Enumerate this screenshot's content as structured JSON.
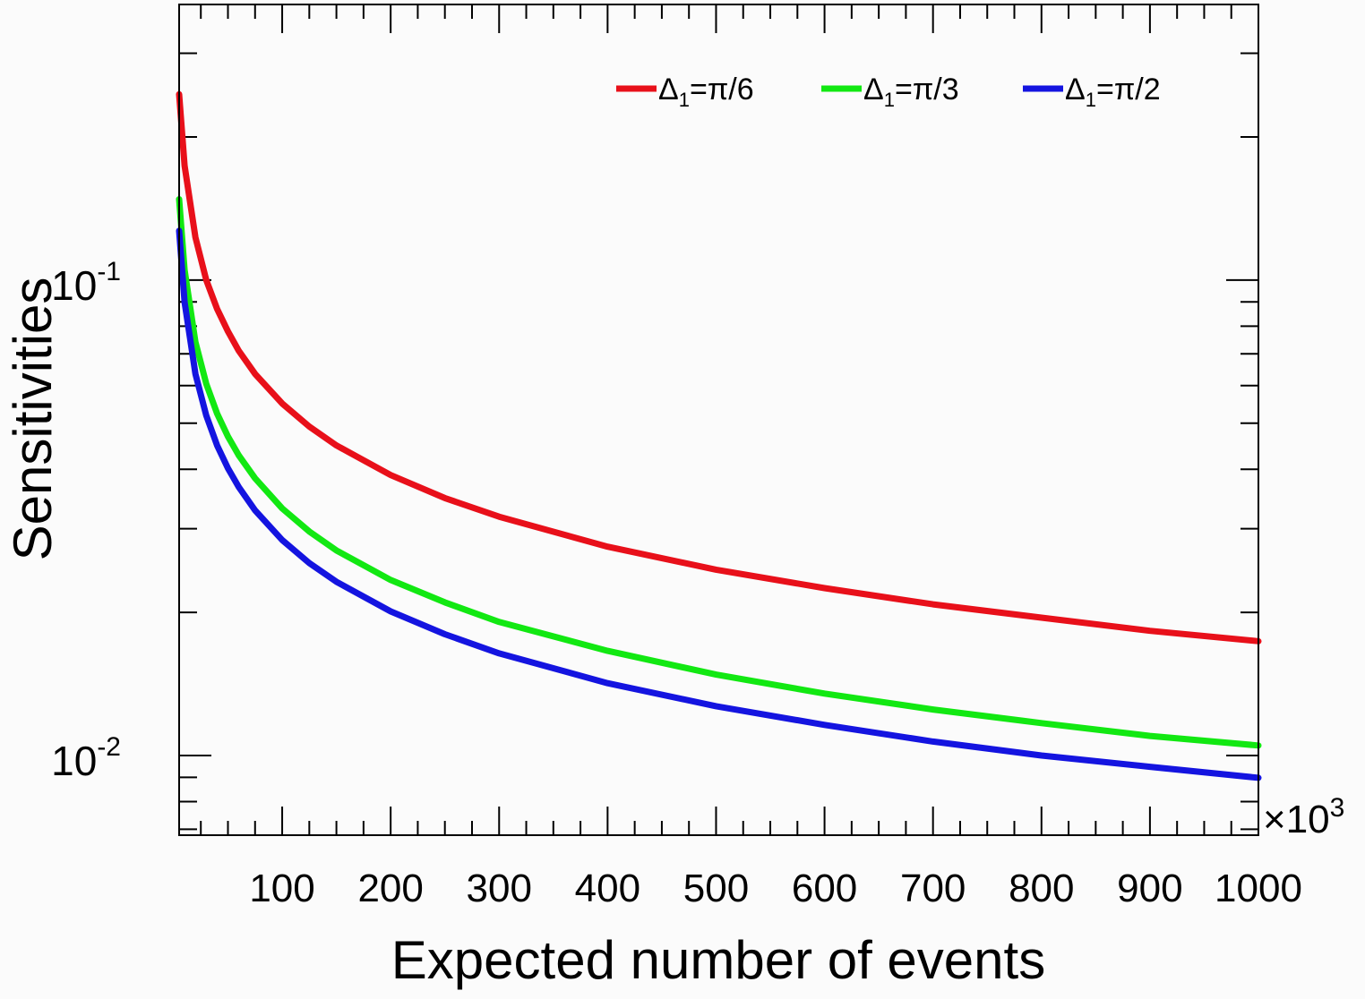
{
  "chart_data": {
    "type": "line",
    "title": "",
    "xlabel": "Expected number of events",
    "ylabel": "Sensitivities",
    "x_multiplier": "×10",
    "x_multiplier_exp": "3",
    "xlim": [
      5,
      1000
    ],
    "ylim": [
      0.0068,
      0.38
    ],
    "yscale": "log",
    "x_ticks": [
      100,
      200,
      300,
      400,
      500,
      600,
      700,
      800,
      900,
      1000
    ],
    "x_tick_labels": [
      "100",
      "200",
      "300",
      "400",
      "500",
      "600",
      "700",
      "800",
      "900",
      "1000"
    ],
    "y_ticks": [
      {
        "value": 0.1,
        "base": "10",
        "exp": "-1"
      },
      {
        "value": 0.01,
        "base": "10",
        "exp": "-2"
      }
    ],
    "legend_position": "top-right",
    "grid": false,
    "series": [
      {
        "name": "Δ1=π/6",
        "legend_main": "Δ",
        "legend_sub": "1",
        "legend_rest": "=π/6",
        "color": "#e8101a",
        "x": [
          5,
          10,
          20,
          30,
          40,
          50,
          60,
          75,
          100,
          125,
          150,
          200,
          250,
          300,
          400,
          500,
          600,
          700,
          800,
          900,
          1000
        ],
        "y": [
          0.246,
          0.174,
          0.123,
          0.1,
          0.087,
          0.078,
          0.071,
          0.0635,
          0.055,
          0.0492,
          0.0449,
          0.0389,
          0.0348,
          0.0318,
          0.0275,
          0.0246,
          0.0225,
          0.0208,
          0.0195,
          0.0183,
          0.0174
        ]
      },
      {
        "name": "Δ1=π/3",
        "legend_main": "Δ",
        "legend_sub": "1",
        "legend_rest": "=π/3",
        "color": "#12e812",
        "x": [
          5,
          10,
          20,
          30,
          40,
          50,
          60,
          75,
          100,
          125,
          150,
          200,
          250,
          300,
          400,
          500,
          600,
          700,
          800,
          900,
          1000
        ],
        "y": [
          0.148,
          0.105,
          0.0741,
          0.0605,
          0.0524,
          0.0469,
          0.0428,
          0.0383,
          0.0331,
          0.0296,
          0.027,
          0.0234,
          0.021,
          0.0191,
          0.0166,
          0.0148,
          0.0135,
          0.0125,
          0.0117,
          0.011,
          0.0105
        ]
      },
      {
        "name": "Δ1=π/2",
        "legend_main": "Δ",
        "legend_sub": "1",
        "legend_rest": "=π/2",
        "color": "#1414e0",
        "x": [
          5,
          10,
          20,
          30,
          40,
          50,
          60,
          75,
          100,
          125,
          150,
          200,
          250,
          300,
          400,
          500,
          600,
          700,
          800,
          900,
          1000
        ],
        "y": [
          0.127,
          0.0898,
          0.0635,
          0.0519,
          0.0449,
          0.0402,
          0.0367,
          0.0328,
          0.0284,
          0.0254,
          0.0232,
          0.0201,
          0.018,
          0.0164,
          0.0142,
          0.0127,
          0.0116,
          0.0107,
          0.01,
          0.00947,
          0.00898
        ]
      }
    ]
  }
}
